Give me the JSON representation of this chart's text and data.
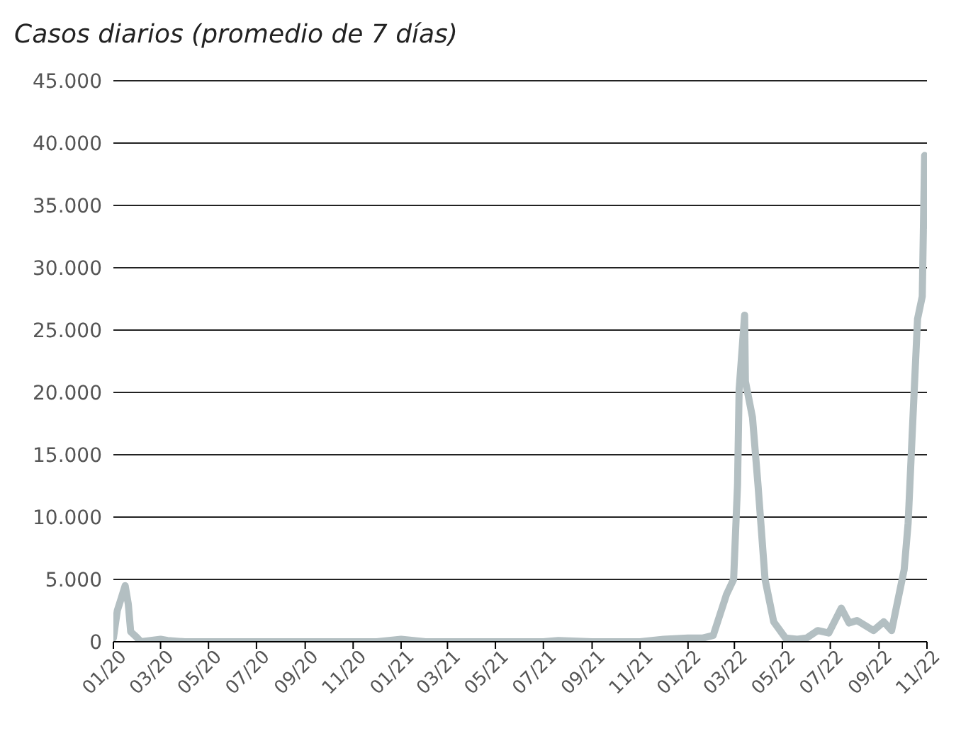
{
  "chart_data": {
    "type": "line",
    "subtitle": "Casos diarios (promedio de 7 días)",
    "x": [
      "2020-01-01",
      "2020-01-06",
      "2020-01-11",
      "2020-01-16",
      "2020-01-20",
      "2020-01-23",
      "2020-01-30",
      "2020-02-05",
      "2020-03-01",
      "2020-03-10",
      "2020-04-01",
      "2020-06-01",
      "2020-09-01",
      "2020-12-01",
      "2021-01-01",
      "2021-02-01",
      "2021-05-01",
      "2021-07-01",
      "2021-07-20",
      "2021-09-01",
      "2021-11-01",
      "2021-12-01",
      "2022-01-01",
      "2022-01-20",
      "2022-02-02",
      "2022-02-19",
      "2022-02-28",
      "2022-03-05",
      "2022-03-07",
      "2022-03-14",
      "2022-03-15",
      "2022-03-24",
      "2022-03-31",
      "2022-04-09",
      "2022-04-20",
      "2022-05-05",
      "2022-05-20",
      "2022-06-01",
      "2022-06-15",
      "2022-06-29",
      "2022-07-15",
      "2022-07-25",
      "2022-08-04",
      "2022-08-25",
      "2022-09-07",
      "2022-09-17",
      "2022-10-03",
      "2022-10-08",
      "2022-10-13",
      "2022-10-20",
      "2022-10-26",
      "2022-10-29",
      "2022-10-31"
    ],
    "series": [
      {
        "color": "#b3bfc2",
        "values": [
          300,
          2500,
          3500,
          4500,
          3000,
          800,
          400,
          0,
          200,
          100,
          0,
          0,
          0,
          0,
          200,
          0,
          0,
          0,
          100,
          0,
          0,
          200,
          300,
          300,
          500,
          3800,
          5000,
          12600,
          20200,
          26200,
          20900,
          18000,
          12600,
          5000,
          1600,
          300,
          200,
          300,
          900,
          700,
          2700,
          1500,
          1700,
          900,
          1600,
          900,
          5800,
          9500,
          16400,
          25900,
          27700,
          39000,
          33400
        ]
      }
    ],
    "xlim": [
      "2020-01-01",
      "2022-11-01"
    ],
    "xticks": [
      {
        "value": "2020-01-01",
        "label": "01/20"
      },
      {
        "value": "2020-03-01",
        "label": "03/20"
      },
      {
        "value": "2020-05-01",
        "label": "05/20"
      },
      {
        "value": "2020-07-01",
        "label": "07/20"
      },
      {
        "value": "2020-09-01",
        "label": "09/20"
      },
      {
        "value": "2020-11-01",
        "label": "11/20"
      },
      {
        "value": "2021-01-01",
        "label": "01/21"
      },
      {
        "value": "2021-03-01",
        "label": "03/21"
      },
      {
        "value": "2021-05-01",
        "label": "05/21"
      },
      {
        "value": "2021-07-01",
        "label": "07/21"
      },
      {
        "value": "2021-09-01",
        "label": "09/21"
      },
      {
        "value": "2021-11-01",
        "label": "11/21"
      },
      {
        "value": "2022-01-01",
        "label": "01/22"
      },
      {
        "value": "2022-03-01",
        "label": "03/22"
      },
      {
        "value": "2022-05-01",
        "label": "05/22"
      },
      {
        "value": "2022-07-01",
        "label": "07/22"
      },
      {
        "value": "2022-09-01",
        "label": "09/22"
      },
      {
        "value": "2022-11-01",
        "label": "11/22"
      }
    ],
    "ylim": [
      0,
      45000
    ],
    "yticks": [
      0,
      {
        "value": 5000,
        "label": "5.000"
      },
      {
        "value": 10000,
        "label": "10.000"
      },
      {
        "value": 15000,
        "label": "15.000"
      },
      {
        "value": 20000,
        "label": "20.000"
      },
      {
        "value": 25000,
        "label": "25.000"
      },
      {
        "value": 30000,
        "label": "30.000"
      },
      {
        "value": 35000,
        "label": "35.000"
      },
      {
        "value": 40000,
        "label": "40.000"
      },
      {
        "value": 45000,
        "label": "45.000"
      }
    ],
    "grid": "y",
    "marker": "none",
    "line_style": "solid"
  }
}
